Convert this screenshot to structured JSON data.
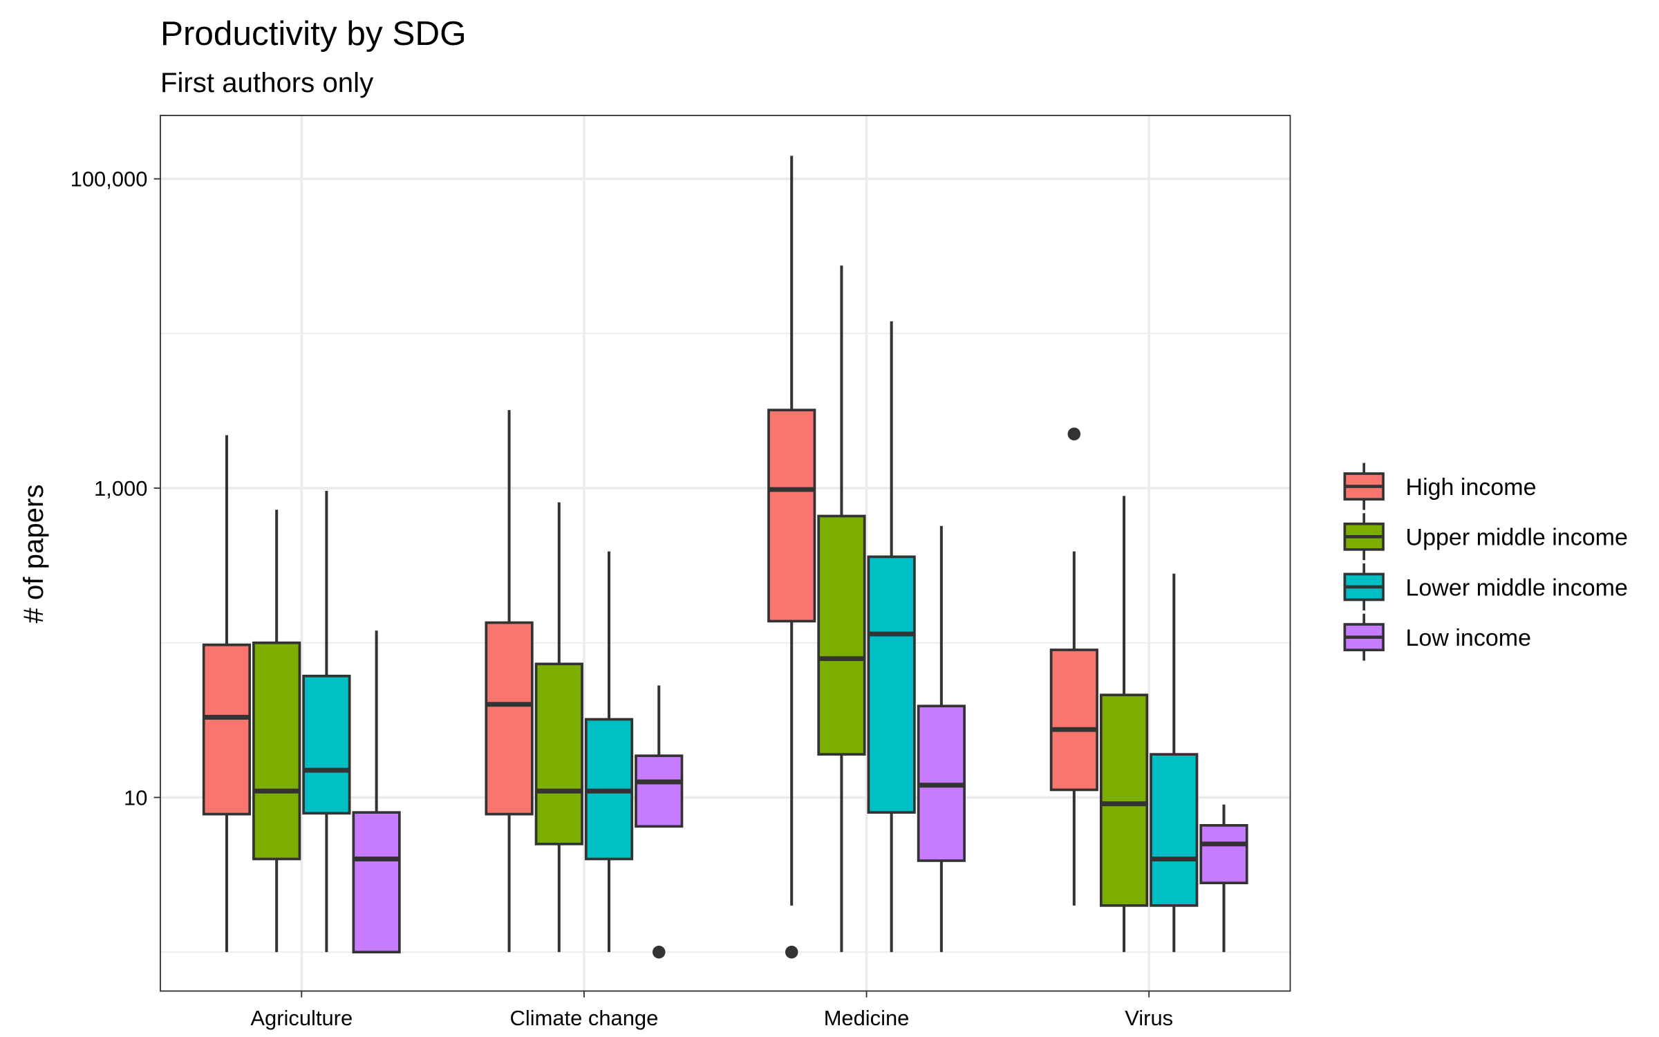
{
  "chart_data": {
    "type": "box",
    "title": "Productivity by SDG",
    "subtitle": "First authors only",
    "y_label": "# of papers",
    "categories": [
      "Agriculture",
      "Climate change",
      "Medicine",
      "Virus"
    ],
    "ylog": true,
    "ylim": [
      0.56,
      257000
    ],
    "yticks": [
      {
        "value": 10,
        "label": "10"
      },
      {
        "value": 1000,
        "label": "1,000"
      },
      {
        "value": 100000,
        "label": "100,000"
      }
    ],
    "yminor": [
      1,
      100,
      10000
    ],
    "grid": true,
    "legend": "right",
    "series": [
      {
        "name": "High income",
        "color": "#F8766D",
        "low": [
          1,
          1,
          2,
          2
        ],
        "q1": [
          7.8,
          7.8,
          138,
          11.2
        ],
        "median": [
          33,
          40,
          980,
          27.5
        ],
        "q3": [
          97,
          135,
          3200,
          90
        ],
        "high": [
          2200,
          3200,
          141000,
          390
        ],
        "outliers": [
          [],
          [],
          [
            1
          ],
          [
            2240
          ]
        ]
      },
      {
        "name": "Upper middle income",
        "color": "#7CAE00",
        "low": [
          1,
          1,
          1,
          1
        ],
        "q1": [
          4,
          5,
          19,
          2
        ],
        "median": [
          11,
          11,
          79,
          9.1
        ],
        "q3": [
          100,
          73,
          660,
          46
        ],
        "high": [
          725,
          810,
          27500,
          890
        ],
        "outliers": [
          [],
          [],
          [],
          []
        ]
      },
      {
        "name": "Lower middle income",
        "color": "#00BFC4",
        "low": [
          1,
          1,
          1,
          1
        ],
        "q1": [
          7.9,
          4,
          8,
          2
        ],
        "median": [
          15,
          11,
          114,
          4
        ],
        "q3": [
          61,
          32,
          360,
          19
        ],
        "high": [
          960,
          390,
          12000,
          280
        ],
        "outliers": [
          [],
          [],
          [],
          []
        ]
      },
      {
        "name": "Low income",
        "color": "#C77CFF",
        "low": [
          1,
          6.5,
          1,
          1
        ],
        "q1": [
          1,
          6.5,
          3.9,
          2.8
        ],
        "median": [
          4,
          12.6,
          12,
          5
        ],
        "q3": [
          8,
          18.6,
          39,
          6.6
        ],
        "high": [
          120,
          53,
          570,
          9
        ],
        "outliers": [
          [],
          [
            1
          ],
          [],
          []
        ]
      }
    ]
  }
}
